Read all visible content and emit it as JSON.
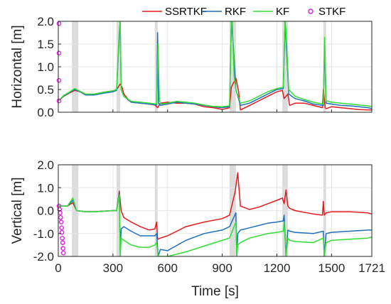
{
  "chart_data": [
    {
      "type": "line",
      "ylabel": "Horizontal [m]",
      "xlabel": "",
      "xlim": [
        0,
        1721
      ],
      "ylim": [
        0,
        2
      ],
      "xticks": [
        0,
        300,
        600,
        900,
        1200,
        1500,
        1721
      ],
      "xtick_labels": [
        "",
        "",
        "",
        "",
        "",
        "",
        ""
      ],
      "yticks": [
        0,
        0.5,
        1,
        1.5,
        2
      ],
      "ytick_labels": [
        "0.0",
        "0.5",
        "1.0",
        "1.5",
        "2.0"
      ],
      "grid": true,
      "legend_position": "top",
      "shaded_intervals": [
        [
          75,
          110
        ],
        [
          320,
          340
        ],
        [
          530,
          545
        ],
        [
          940,
          975
        ],
        [
          1230,
          1260
        ],
        [
          1455,
          1470
        ]
      ],
      "series": [
        {
          "name": "SSRTKF",
          "color": "#e41a1c",
          "x": [
            0,
            30,
            60,
            90,
            120,
            150,
            200,
            250,
            300,
            320,
            340,
            350,
            360,
            380,
            400,
            450,
            500,
            530,
            545,
            560,
            600,
            650,
            700,
            750,
            800,
            850,
            880,
            900,
            940,
            950,
            975,
            990,
            1000,
            1050,
            1100,
            1150,
            1200,
            1230,
            1240,
            1260,
            1270,
            1300,
            1350,
            1400,
            1450,
            1455,
            1465,
            1470,
            1500,
            1550,
            1600,
            1650,
            1700,
            1721
          ],
          "y": [
            0.25,
            0.35,
            0.42,
            0.48,
            0.45,
            0.38,
            0.4,
            0.44,
            0.47,
            0.5,
            0.62,
            0.55,
            0.4,
            0.3,
            0.22,
            0.2,
            0.18,
            0.16,
            0.1,
            0.2,
            0.22,
            0.2,
            0.2,
            0.18,
            0.12,
            0.1,
            0.08,
            0.06,
            0.1,
            0.55,
            0.75,
            0.45,
            0.05,
            0.15,
            0.25,
            0.35,
            0.45,
            0.48,
            0.3,
            0.4,
            0.15,
            0.2,
            0.2,
            0.15,
            0.1,
            0.5,
            0.1,
            0.08,
            0.12,
            0.1,
            0.08,
            0.06,
            0.05,
            0.05
          ]
        },
        {
          "name": "RKF",
          "color": "#1f6fbf",
          "x": [
            0,
            30,
            60,
            90,
            120,
            150,
            200,
            250,
            300,
            320,
            335,
            340,
            345,
            360,
            400,
            450,
            500,
            540,
            545,
            550,
            560,
            600,
            650,
            700,
            750,
            800,
            850,
            900,
            940,
            950,
            960,
            975,
            1000,
            1050,
            1100,
            1150,
            1200,
            1235,
            1245,
            1255,
            1265,
            1300,
            1350,
            1400,
            1455,
            1462,
            1470,
            1500,
            1550,
            1600,
            1650,
            1700,
            1721
          ],
          "y": [
            0.25,
            0.36,
            0.43,
            0.5,
            0.45,
            0.38,
            0.38,
            0.42,
            0.45,
            0.48,
            1.7,
            2.0,
            0.5,
            0.35,
            0.22,
            0.2,
            0.18,
            0.16,
            1.75,
            0.2,
            0.15,
            0.18,
            0.22,
            0.2,
            0.18,
            0.15,
            0.12,
            0.1,
            0.12,
            2.0,
            1.5,
            0.5,
            0.15,
            0.2,
            0.3,
            0.4,
            0.5,
            0.52,
            2.0,
            1.2,
            0.4,
            0.3,
            0.25,
            0.18,
            0.15,
            1.5,
            0.2,
            0.18,
            0.15,
            0.14,
            0.12,
            0.1,
            0.08
          ]
        },
        {
          "name": "KF",
          "color": "#33dd33",
          "x": [
            0,
            30,
            60,
            90,
            120,
            150,
            200,
            250,
            300,
            320,
            335,
            340,
            345,
            360,
            400,
            450,
            500,
            540,
            548,
            555,
            565,
            600,
            650,
            700,
            750,
            800,
            850,
            900,
            940,
            950,
            955,
            965,
            975,
            1000,
            1050,
            1100,
            1150,
            1200,
            1235,
            1245,
            1250,
            1265,
            1300,
            1350,
            1400,
            1455,
            1462,
            1470,
            1500,
            1550,
            1600,
            1650,
            1700,
            1721
          ],
          "y": [
            0.25,
            0.37,
            0.44,
            0.52,
            0.46,
            0.4,
            0.4,
            0.44,
            0.47,
            0.5,
            1.8,
            2.0,
            0.5,
            0.35,
            0.24,
            0.22,
            0.2,
            0.18,
            1.5,
            0.25,
            0.18,
            0.2,
            0.24,
            0.22,
            0.2,
            0.16,
            0.13,
            0.12,
            0.14,
            2.0,
            2.0,
            0.8,
            0.5,
            0.2,
            0.25,
            0.35,
            0.45,
            0.52,
            0.55,
            2.0,
            1.8,
            0.5,
            0.35,
            0.28,
            0.22,
            0.18,
            1.65,
            0.25,
            0.22,
            0.2,
            0.18,
            0.16,
            0.14,
            0.12
          ]
        },
        {
          "name": "STKF",
          "color": "#dd22dd",
          "marker": "o",
          "x": [
            0,
            0,
            0,
            0
          ],
          "y": [
            0.25,
            0.7,
            1.3,
            1.95
          ]
        }
      ]
    },
    {
      "type": "line",
      "ylabel": "Vertical [m]",
      "xlabel": "Time [s]",
      "xlim": [
        0,
        1721
      ],
      "ylim": [
        -2,
        2
      ],
      "xticks": [
        0,
        300,
        600,
        900,
        1200,
        1500,
        1721
      ],
      "xtick_labels": [
        "0",
        "300",
        "600",
        "900",
        "1200",
        "1500",
        "1721"
      ],
      "yticks": [
        -2,
        -1,
        0,
        1,
        2
      ],
      "ytick_labels": [
        "-2.0",
        "-1.0",
        "0.0",
        "1.0",
        "2.0"
      ],
      "grid": true,
      "shaded_intervals": [
        [
          75,
          110
        ],
        [
          320,
          340
        ],
        [
          530,
          545
        ],
        [
          940,
          975
        ],
        [
          1230,
          1260
        ],
        [
          1455,
          1470
        ]
      ],
      "series": [
        {
          "name": "SSRTKF",
          "color": "#e41a1c",
          "x": [
            0,
            50,
            80,
            100,
            150,
            200,
            300,
            320,
            335,
            345,
            360,
            400,
            450,
            500,
            530,
            540,
            545,
            560,
            600,
            700,
            800,
            900,
            940,
            970,
            985,
            1000,
            1050,
            1100,
            1150,
            1200,
            1230,
            1240,
            1250,
            1260,
            1270,
            1300,
            1400,
            1450,
            1455,
            1460,
            1470,
            1500,
            1600,
            1700,
            1721
          ],
          "y": [
            0.2,
            0.2,
            0.35,
            0.0,
            -0.05,
            -0.05,
            0.0,
            0.0,
            0.85,
            0.0,
            -0.3,
            -0.5,
            -0.7,
            -0.85,
            -0.8,
            -0.5,
            -1.25,
            -1.2,
            -1.1,
            -0.7,
            -0.5,
            -0.35,
            -0.2,
            0.8,
            1.65,
            0.2,
            0.05,
            0.15,
            0.3,
            0.45,
            0.55,
            0.3,
            0.9,
            0.2,
            0.1,
            0.0,
            -0.15,
            -0.2,
            0.4,
            -0.2,
            -0.1,
            -0.05,
            -0.05,
            -0.1,
            -0.15
          ]
        },
        {
          "name": "RKF",
          "color": "#1f6fbf",
          "x": [
            0,
            50,
            80,
            100,
            150,
            200,
            300,
            320,
            335,
            340,
            345,
            360,
            400,
            450,
            500,
            530,
            540,
            548,
            560,
            600,
            700,
            800,
            900,
            940,
            975,
            980,
            985,
            1000,
            1050,
            1100,
            1150,
            1200,
            1235,
            1240,
            1250,
            1260,
            1270,
            1300,
            1400,
            1455,
            1460,
            1470,
            1500,
            1600,
            1700,
            1721
          ],
          "y": [
            0.2,
            0.2,
            0.45,
            0.0,
            -0.05,
            -0.05,
            0.0,
            0.0,
            0.8,
            -1.8,
            -0.8,
            -0.7,
            -0.9,
            -1.1,
            -1.1,
            -1.1,
            -1.0,
            -2.0,
            -1.7,
            -1.75,
            -1.3,
            -1.0,
            -0.85,
            -0.7,
            -0.1,
            -2.0,
            -1.0,
            -0.85,
            -0.75,
            -0.65,
            -0.55,
            -0.5,
            -0.45,
            -0.2,
            -2.0,
            -0.85,
            -0.9,
            -0.95,
            -1.0,
            -0.9,
            -2.0,
            -1.0,
            -0.95,
            -0.9,
            -0.85,
            -0.85
          ]
        },
        {
          "name": "KF",
          "color": "#33dd33",
          "x": [
            0,
            50,
            80,
            100,
            150,
            200,
            300,
            320,
            335,
            340,
            345,
            360,
            400,
            450,
            500,
            530,
            540,
            548,
            560,
            600,
            700,
            800,
            900,
            940,
            975,
            980,
            985,
            1000,
            1050,
            1100,
            1150,
            1200,
            1235,
            1240,
            1250,
            1260,
            1270,
            1300,
            1400,
            1455,
            1460,
            1470,
            1500,
            1600,
            1700,
            1721
          ],
          "y": [
            0.2,
            0.2,
            0.55,
            0.0,
            -0.05,
            -0.05,
            0.0,
            0.0,
            0.7,
            -2.0,
            -1.2,
            -1.3,
            -1.5,
            -1.6,
            -1.6,
            -1.5,
            -1.4,
            -2.0,
            -2.0,
            -2.0,
            -1.8,
            -1.55,
            -1.3,
            -1.2,
            -0.5,
            -2.0,
            -1.5,
            -1.4,
            -1.2,
            -1.1,
            -1.0,
            -0.95,
            -0.9,
            -0.5,
            -2.0,
            -1.2,
            -1.3,
            -1.35,
            -1.4,
            -1.2,
            -2.0,
            -1.4,
            -1.3,
            -1.25,
            -1.2,
            -1.15
          ]
        },
        {
          "name": "STKF",
          "color": "#dd22dd",
          "marker": "o",
          "x": [
            0,
            3,
            6,
            9,
            12,
            14,
            16,
            18,
            20,
            22,
            24
          ],
          "y": [
            0.2,
            0.05,
            -0.1,
            -0.3,
            -0.5,
            -0.75,
            -0.95,
            -1.2,
            -1.4,
            -1.65,
            -1.85
          ]
        }
      ]
    }
  ]
}
